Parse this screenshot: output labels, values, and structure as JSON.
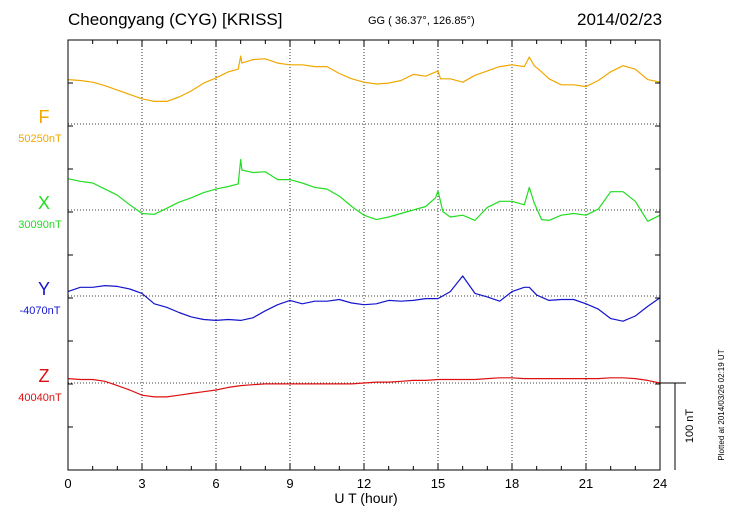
{
  "header": {
    "station": "Cheongyang (CYG)  [KRISS]",
    "coords": "GG ( 36.37°, 126.85°)",
    "date": "2014/02/23"
  },
  "footnote": "Plotted at 2014/03/26 02:19 UT",
  "chart_data": {
    "type": "line",
    "xlabel": "U T (hour)",
    "xlim": [
      0,
      24
    ],
    "x_ticks": [
      "0",
      "3",
      "6",
      "9",
      "12",
      "15",
      "18",
      "21",
      "24"
    ],
    "grid": true,
    "scale_bar": {
      "label": "100 nT",
      "value": 100
    },
    "series": [
      {
        "name": "F",
        "baseline_label": "50250nT",
        "baseline": 50250,
        "color": "#f0a800",
        "x": [
          0,
          0.5,
          1,
          1.5,
          2,
          2.5,
          3,
          3.5,
          4,
          4.5,
          5,
          5.5,
          6,
          6.5,
          6.9,
          7,
          7.05,
          7.5,
          8,
          8.5,
          9,
          9.5,
          10,
          10.5,
          11,
          11.5,
          12,
          12.5,
          13,
          13.5,
          14,
          14.5,
          15,
          15.1,
          15.5,
          16,
          16.5,
          17,
          17.5,
          18,
          18.5,
          18.7,
          18.9,
          19.2,
          19.5,
          20,
          20.5,
          21,
          21.5,
          22,
          22.5,
          23,
          23.5,
          24
        ],
        "y": [
          51,
          50,
          48,
          44,
          39,
          34,
          29,
          26,
          26,
          31,
          38,
          47,
          53,
          60,
          63,
          78,
          70,
          74,
          75,
          70,
          68,
          68,
          66,
          66,
          58,
          52,
          48,
          46,
          47,
          50,
          57,
          55,
          61,
          52,
          52,
          48,
          56,
          61,
          66,
          68,
          66,
          77,
          67,
          60,
          52,
          45,
          45,
          43,
          50,
          60,
          67,
          63,
          51,
          48
        ]
      },
      {
        "name": "X",
        "baseline_label": "30090nT",
        "baseline": 30090,
        "color": "#22dd22",
        "x": [
          0,
          0.5,
          1,
          1.5,
          2,
          2.5,
          3,
          3.5,
          4,
          4.5,
          5,
          5.5,
          6,
          6.5,
          6.9,
          7,
          7.05,
          7.5,
          8,
          8.5,
          9,
          9.5,
          10,
          10.5,
          11,
          11.5,
          12,
          12.5,
          13,
          13.5,
          14,
          14.5,
          14.9,
          15,
          15.2,
          15.5,
          16,
          16.5,
          17,
          17.5,
          18,
          18.5,
          18.7,
          18.9,
          19.2,
          19.5,
          20,
          20.5,
          21,
          21.5,
          22,
          22.5,
          23,
          23.5,
          24
        ],
        "y": [
          36,
          33,
          31,
          24,
          17,
          6,
          -4,
          -5,
          2,
          9,
          14,
          20,
          24,
          27,
          30,
          58,
          46,
          43,
          44,
          35,
          35,
          31,
          26,
          24,
          16,
          4,
          -6,
          -11,
          -8,
          -4,
          0,
          4,
          14,
          22,
          -2,
          -8,
          -6,
          -12,
          3,
          10,
          10,
          6,
          26,
          8,
          -11,
          -12,
          -6,
          -4,
          -6,
          1,
          21,
          21,
          10,
          -13,
          -6
        ]
      },
      {
        "name": "Y",
        "baseline_label": "-4070nT",
        "baseline": -4070,
        "color": "#1414cc",
        "x": [
          0,
          0.5,
          1,
          1.5,
          2,
          2.5,
          3,
          3.5,
          4,
          4.5,
          5,
          5.5,
          6,
          6.5,
          7,
          7.5,
          8,
          8.5,
          9,
          9.5,
          10,
          10.5,
          11,
          11.5,
          12,
          12.5,
          13,
          13.5,
          14,
          14.5,
          15,
          15.5,
          16,
          16.5,
          17,
          17.5,
          18,
          18.5,
          18.7,
          19,
          19.5,
          20,
          20.5,
          21,
          21.5,
          22,
          22.5,
          23,
          23.5,
          24
        ],
        "y": [
          5,
          10,
          10,
          12,
          11,
          8,
          3,
          -9,
          -13,
          -19,
          -24,
          -27,
          -28,
          -27,
          -28,
          -25,
          -17,
          -10,
          -5,
          -9,
          -6,
          -6,
          -4,
          -8,
          -10,
          -9,
          -5,
          -6,
          -5,
          -3,
          -3,
          5,
          23,
          3,
          -1,
          -6,
          5,
          10,
          10,
          1,
          -5,
          -4,
          -4,
          -9,
          -15,
          -26,
          -29,
          -23,
          -12,
          -2
        ]
      },
      {
        "name": "Z",
        "baseline_label": "40040nT",
        "baseline": 40040,
        "color": "#dd1111",
        "x": [
          0,
          0.5,
          1,
          1.5,
          2,
          2.5,
          3,
          3.5,
          4,
          4.5,
          5,
          5.5,
          6,
          6.5,
          7,
          7.5,
          8,
          8.5,
          9,
          9.5,
          10,
          10.5,
          11,
          11.5,
          12,
          12.5,
          13,
          13.5,
          14,
          14.5,
          15,
          15.5,
          16,
          16.5,
          17,
          17.5,
          18,
          18.5,
          19,
          19.5,
          20,
          20.5,
          21,
          21.5,
          22,
          22.5,
          23,
          23.5,
          24
        ],
        "y": [
          5,
          4,
          4,
          2,
          -3,
          -8,
          -14,
          -16,
          -16,
          -14,
          -12,
          -10,
          -8,
          -5,
          -3,
          -2,
          -1,
          -1,
          -1,
          -1,
          -1,
          -1,
          -1,
          -1,
          0,
          1,
          1,
          2,
          3,
          3,
          4,
          4,
          4,
          4,
          5,
          6,
          6,
          5,
          5,
          5,
          5,
          5,
          5,
          5,
          6,
          6,
          5,
          3,
          0
        ]
      }
    ]
  }
}
